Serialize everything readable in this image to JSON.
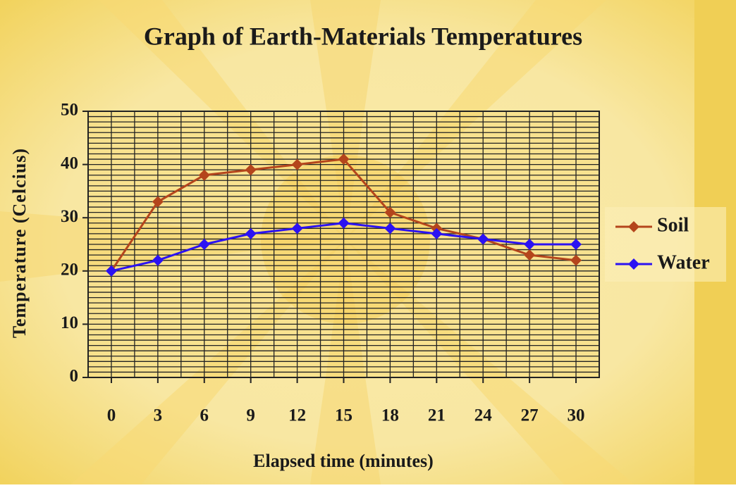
{
  "chart_data": {
    "type": "line",
    "title": "Graph of Earth-Materials Temperatures",
    "x_label": "Elapsed time (minutes)",
    "y_label": "Temperature (Celcius)",
    "x": [
      0,
      3,
      6,
      9,
      12,
      15,
      18,
      21,
      24,
      27,
      30
    ],
    "series": [
      {
        "name": "Soil",
        "color": "#b4451c",
        "values": [
          20,
          33,
          38,
          39,
          40,
          41,
          31,
          28,
          26,
          23,
          22
        ]
      },
      {
        "name": "Water",
        "color": "#2b12f2",
        "values": [
          20,
          22,
          25,
          27,
          28,
          29,
          28,
          27,
          26,
          25,
          25
        ]
      }
    ],
    "xlim": [
      -1.5,
      31.5
    ],
    "xticks": [
      0,
      3,
      6,
      9,
      12,
      15,
      18,
      21,
      24,
      27,
      30
    ],
    "ylim": [
      0,
      50
    ],
    "yticks": [
      0,
      10,
      20,
      30,
      40,
      50
    ],
    "grid": true,
    "legend": "right"
  }
}
